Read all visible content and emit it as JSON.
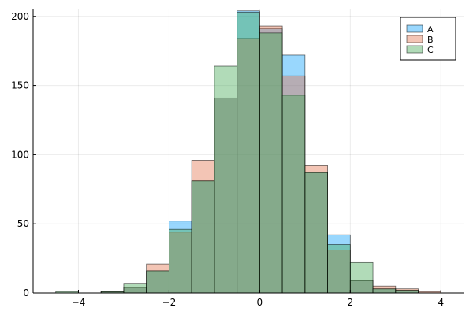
{
  "chart_data": {
    "type": "bar",
    "subtype": "overlaid-histogram",
    "title": "",
    "xlabel": "",
    "ylabel": "",
    "xlim": [
      -5,
      4.5
    ],
    "ylim": [
      0,
      205
    ],
    "grid": true,
    "legend_position": "top-right",
    "bin_width": 0.5,
    "bin_starts": [
      -4.5,
      -4.0,
      -3.5,
      -3.0,
      -2.5,
      -2.0,
      -1.5,
      -1.0,
      -0.5,
      0.0,
      0.5,
      1.0,
      1.5,
      2.0,
      2.5,
      3.0,
      3.5
    ],
    "x_ticks": [
      -4,
      -2,
      0,
      2,
      4
    ],
    "x_tick_labels": [
      "−4",
      "−2",
      "0",
      "2",
      "4"
    ],
    "y_ticks": [
      0,
      50,
      100,
      150,
      200
    ],
    "y_tick_labels": [
      "0",
      "50",
      "100",
      "150",
      "200"
    ],
    "series": [
      {
        "name": "A",
        "color": "#009af9",
        "values": [
          0,
          0,
          1,
          4,
          16,
          52,
          81,
          141,
          204,
          191,
          172,
          87,
          42,
          9,
          3,
          2,
          0
        ]
      },
      {
        "name": "B",
        "color": "#e26f46",
        "values": [
          0,
          0,
          1,
          4,
          21,
          44,
          96,
          141,
          184,
          193,
          157,
          92,
          31,
          9,
          5,
          3,
          1
        ]
      },
      {
        "name": "C",
        "color": "#3da44d",
        "values": [
          1,
          0,
          1,
          7,
          16,
          46,
          81,
          164,
          203,
          188,
          143,
          87,
          35,
          22,
          3,
          2,
          0
        ]
      }
    ]
  }
}
